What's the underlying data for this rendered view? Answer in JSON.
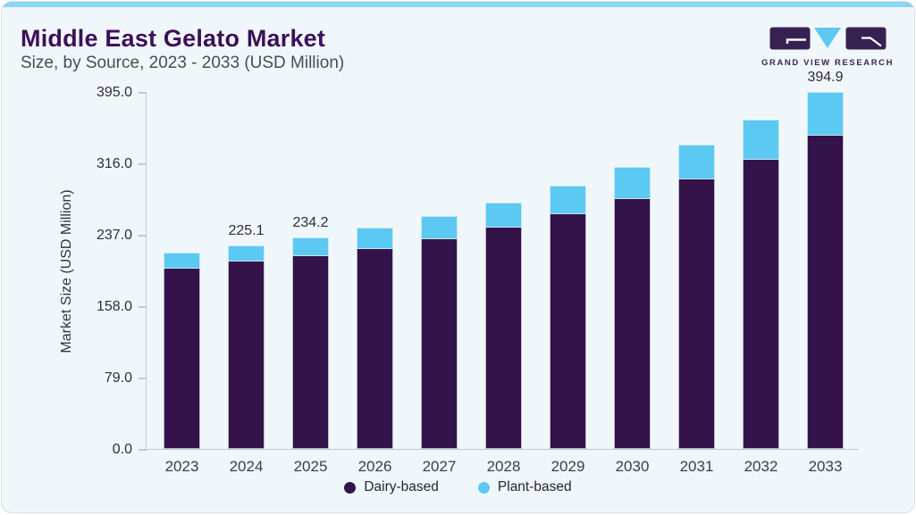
{
  "header": {
    "title": "Middle East Gelato Market",
    "subtitle": "Size, by Source, 2023 - 2033 (USD Million)"
  },
  "logo": {
    "text": "GRAND VIEW RESEARCH"
  },
  "colors": {
    "accent_strip": "#8bd5f4",
    "title_purple": "#3e1059",
    "dairy": "#331349",
    "plant": "#5cc9f2",
    "axis": "#c3c8cf"
  },
  "chart_data": {
    "type": "bar",
    "stacked": true,
    "title": "Middle East Gelato Market Size, by Source, 2023 - 2033 (USD Million)",
    "xlabel": "",
    "ylabel": "Market Size (USD Million)",
    "categories": [
      "2023",
      "2024",
      "2025",
      "2026",
      "2027",
      "2028",
      "2029",
      "2030",
      "2031",
      "2032",
      "2033"
    ],
    "series": [
      {
        "name": "Dairy-based",
        "color": "#331349",
        "values": [
          199.8,
          207.2,
          213.0,
          221.0,
          232.2,
          244.7,
          259.6,
          276.2,
          298.1,
          319.9,
          347.0
        ]
      },
      {
        "name": "Plant-based",
        "color": "#5cc9f2",
        "values": [
          18.1,
          17.9,
          21.2,
          24.0,
          25.6,
          28.1,
          31.2,
          35.4,
          38.5,
          44.8,
          47.9
        ]
      }
    ],
    "totals": [
      217.9,
      225.1,
      234.2,
      245.0,
      257.8,
      272.8,
      290.8,
      311.6,
      336.6,
      364.7,
      394.9
    ],
    "data_labels": [
      "",
      "225.1",
      "234.2",
      "",
      "",
      "",
      "",
      "",
      "",
      "",
      "394.9"
    ],
    "yticks": [
      395.0,
      316.0,
      237.0,
      158.0,
      79.0,
      0.0
    ],
    "ylim": [
      0,
      395
    ],
    "grid": false,
    "legend_position": "bottom"
  }
}
